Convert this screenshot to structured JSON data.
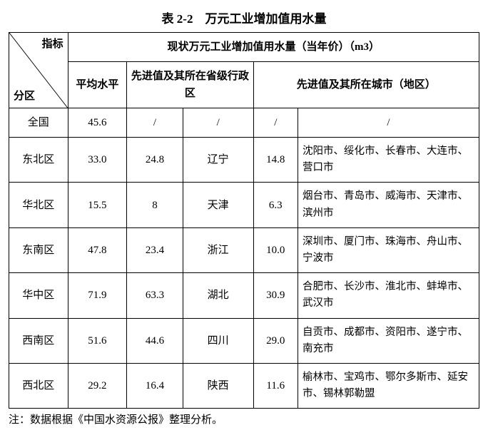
{
  "title": "表 2-2　万元工业增加值用水量",
  "header": {
    "diag_top": "指标",
    "diag_bottom": "分区",
    "main": "现状万元工业增加值用水量（当年价）（m3）",
    "avg": "平均水平",
    "prov": "先进值及其所在省级行政区",
    "city": "先进值及其所在城市（地区）"
  },
  "rows": [
    {
      "region": "全国",
      "avg": "45.6",
      "pv": "/",
      "pn": "/",
      "cv": "/",
      "cn": "/"
    },
    {
      "region": "东北区",
      "avg": "33.0",
      "pv": "24.8",
      "pn": "辽宁",
      "cv": "14.8",
      "cn": "沈阳市、绥化市、长春市、大连市、营口市"
    },
    {
      "region": "华北区",
      "avg": "15.5",
      "pv": "8",
      "pn": "天津",
      "cv": "6.3",
      "cn": "烟台市、青岛市、威海市、天津市、滨州市"
    },
    {
      "region": "东南区",
      "avg": "47.8",
      "pv": "23.4",
      "pn": "浙江",
      "cv": "10.0",
      "cn": "深圳市、厦门市、珠海市、舟山市、宁波市"
    },
    {
      "region": "华中区",
      "avg": "71.9",
      "pv": "63.3",
      "pn": "湖北",
      "cv": "30.9",
      "cn": "合肥市、长沙市、淮北市、蚌埠市、武汉市"
    },
    {
      "region": "西南区",
      "avg": "51.6",
      "pv": "44.6",
      "pn": "四川",
      "cv": "29.0",
      "cn": "自贡市、成都市、资阳市、遂宁市、南充市"
    },
    {
      "region": "西北区",
      "avg": "29.2",
      "pv": "16.4",
      "pn": "陕西",
      "cv": "11.6",
      "cn": "榆林市、宝鸡市、鄂尔多斯市、延安市、锡林郭勒盟"
    }
  ],
  "note": "注：数据根据《中国水资源公报》整理分析。"
}
